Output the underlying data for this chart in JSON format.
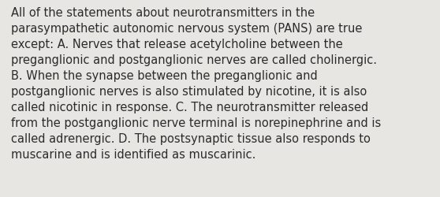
{
  "background_color": "#e8e6e3",
  "text_color": "#2b2b2b",
  "lines": [
    "All of the statements about neurotransmitters in the",
    "parasympathetic autonomic nervous system (PANS) are true",
    "except: A. Nerves that release acetylcholine between the",
    "preganglionic and postganglionic nerves are called cholinergic.",
    "B. When the synapse between the preganglionic and",
    "postganglionic nerves is also stimulated by nicotine, it is also",
    "called nicotinic in response. C. The neurotransmitter released",
    "from the postganglionic nerve terminal is norepinephrine and is",
    "called adrenergic. D. The postsynaptic tissue also responds to",
    "muscarine and is identified as muscarinic."
  ],
  "font_size": 10.5,
  "font_family": "DejaVu Sans",
  "fig_width": 5.58,
  "fig_height": 2.51,
  "dpi": 100
}
